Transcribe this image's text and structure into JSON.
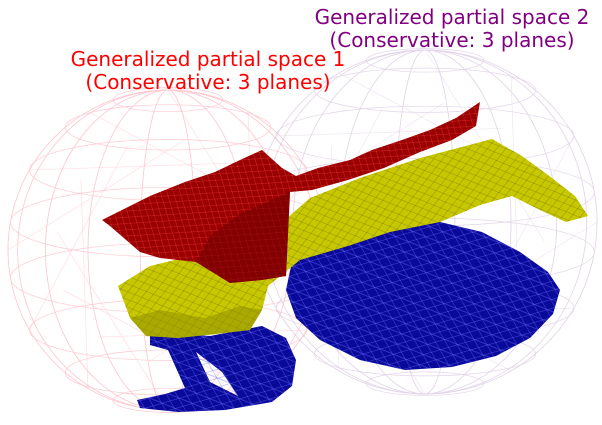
{
  "labels": {
    "space_1": {
      "line1": "Generalized partial space 1",
      "line2": "(Conservative: 3 planes)",
      "color": "#ff0000"
    },
    "space_2": {
      "line1": "Generalized partial space 2",
      "line2": "(Conservative: 3 planes)",
      "color": "#800080"
    }
  },
  "colors": {
    "sphere_1_wire": "#ffb6c1",
    "sphere_2_wire": "#d8c4e0",
    "surface_red": "#990000",
    "surface_yellow": "#c8c800",
    "surface_blue": "#0a0a9a",
    "mesh_line_light": "#ffffff"
  }
}
